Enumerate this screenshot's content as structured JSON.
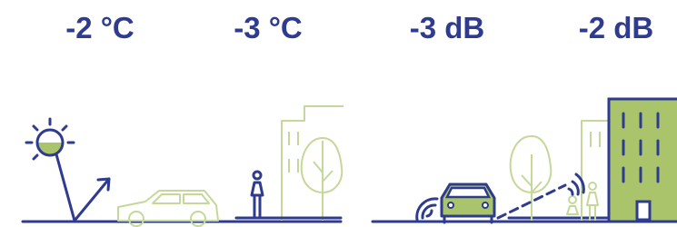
{
  "labels": [
    "-2 °C",
    "-3 °C",
    "-3 dB",
    "-2 dB"
  ]
}
